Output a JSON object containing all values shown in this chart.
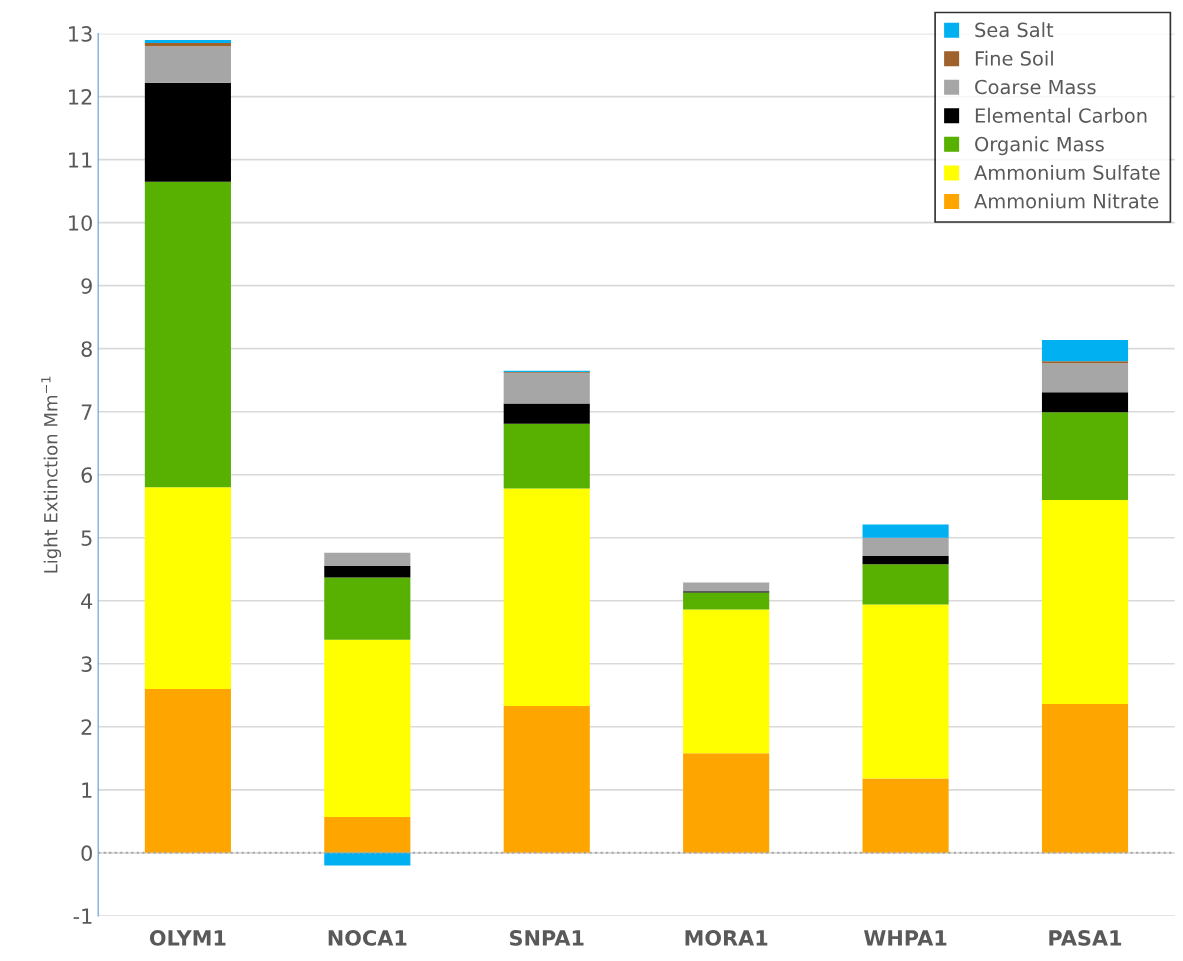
{
  "chart_data": {
    "type": "bar",
    "stacked": true,
    "ylabel": "Light Extinction Mm$^{−1}$",
    "categories": [
      "OLYM1",
      "NOCA1",
      "SNPA1",
      "MORA1",
      "WHPA1",
      "PASA1"
    ],
    "series": [
      {
        "name": "Ammonium Nitrate",
        "color": "#ffa500",
        "values": [
          2.6,
          0.57,
          2.33,
          1.58,
          1.18,
          2.36
        ]
      },
      {
        "name": "Ammonium Sulfate",
        "color": "#ffff00",
        "values": [
          3.2,
          2.81,
          3.45,
          2.28,
          2.76,
          3.24
        ]
      },
      {
        "name": "Organic Mass",
        "color": "#58b000",
        "values": [
          4.85,
          0.99,
          1.03,
          0.27,
          0.64,
          1.39
        ]
      },
      {
        "name": "Elemental Carbon",
        "color": "#000000",
        "values": [
          1.57,
          0.18,
          0.32,
          0.02,
          0.13,
          0.32
        ]
      },
      {
        "name": "Coarse Mass",
        "color": "#a6a6a6",
        "values": [
          0.58,
          0.21,
          0.49,
          0.14,
          0.29,
          0.46
        ]
      },
      {
        "name": "Fine Soil",
        "color": "#a0622d",
        "values": [
          0.05,
          0.0,
          0.01,
          0.0,
          0.0,
          0.03
        ]
      },
      {
        "name": "Sea Salt",
        "color": "#00b0f0",
        "values": [
          0.05,
          -0.2,
          0.02,
          0.0,
          0.21,
          0.34
        ]
      }
    ],
    "ylim": [
      -1,
      13
    ],
    "yticks": [
      -1,
      0,
      1,
      2,
      3,
      4,
      5,
      6,
      7,
      8,
      9,
      10,
      11,
      12,
      13
    ],
    "grid": "y",
    "legend": "top right",
    "ref_lines": [
      {
        "axis": "y",
        "value": 0,
        "color": "#a6a6a6",
        "line_style": "dotted"
      }
    ]
  }
}
